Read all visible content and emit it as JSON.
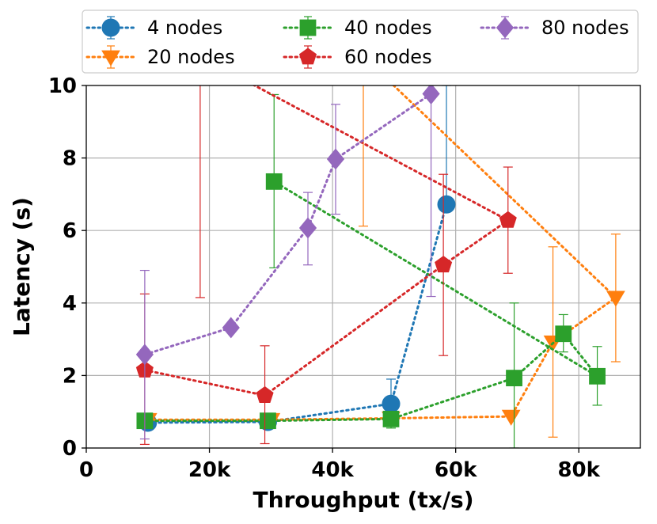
{
  "chart_data": {
    "type": "line",
    "xlabel": "Throughput (tx/s)",
    "ylabel": "Latency (s)",
    "xlim": [
      0,
      90000
    ],
    "ylim": [
      0,
      10
    ],
    "x_ticks": [
      0,
      20000,
      40000,
      60000,
      80000
    ],
    "x_tick_labels": [
      "0",
      "20k",
      "40k",
      "60k",
      "80k"
    ],
    "y_ticks": [
      0,
      2,
      4,
      6,
      8,
      10
    ],
    "y_tick_labels": [
      "0",
      "2",
      "4",
      "6",
      "8",
      "10"
    ],
    "grid": true,
    "legend_position": "top",
    "line_style": "dotted",
    "series": [
      {
        "name": "4 nodes",
        "color": "#1f77b4",
        "marker": "circle",
        "x": [
          10000,
          29500,
          49500,
          58500
        ],
        "y": [
          0.7,
          0.72,
          1.22,
          6.72
        ],
        "err_low": [
          0.7,
          0.72,
          0.65,
          6.72
        ],
        "err_high": [
          0.7,
          0.72,
          1.9,
          10.0
        ]
      },
      {
        "name": "20 nodes",
        "color": "#ff7f0e",
        "marker": "triangle-down",
        "x": [
          10000,
          30000,
          49500,
          69000,
          75800,
          86000,
          45000
        ],
        "y": [
          0.78,
          0.78,
          0.82,
          0.87,
          2.92,
          4.15,
          10.8
        ],
        "err_low": [
          0.78,
          0.78,
          0.82,
          0.87,
          0.3,
          2.38,
          6.12
        ],
        "err_high": [
          0.78,
          0.78,
          0.82,
          0.87,
          5.55,
          5.9,
          10.8
        ]
      },
      {
        "name": "40 nodes",
        "color": "#2ca02c",
        "marker": "square",
        "x": [
          9500,
          29500,
          49500,
          69500,
          77500,
          83000,
          30500
        ],
        "y": [
          0.75,
          0.75,
          0.8,
          1.93,
          3.15,
          1.98,
          7.35
        ],
        "err_low": [
          0.75,
          0.75,
          0.55,
          0.0,
          2.65,
          1.18,
          4.97
        ],
        "err_high": [
          0.75,
          0.75,
          0.8,
          4.0,
          3.68,
          2.8,
          9.75
        ]
      },
      {
        "name": "60 nodes",
        "color": "#d62728",
        "marker": "pentagon",
        "x": [
          9500,
          29000,
          58000,
          68500,
          18500
        ],
        "y": [
          2.15,
          1.45,
          5.05,
          6.28,
          10.8
        ],
        "err_low": [
          0.1,
          0.12,
          2.55,
          4.82,
          4.15
        ],
        "err_high": [
          4.25,
          2.82,
          7.55,
          7.75,
          10.8
        ]
      },
      {
        "name": "80 nodes",
        "color": "#9467bd",
        "marker": "diamond",
        "x": [
          9500,
          23500,
          36000,
          40500,
          56000
        ],
        "y": [
          2.58,
          3.32,
          6.07,
          7.97,
          9.77
        ],
        "err_low": [
          0.25,
          3.32,
          5.05,
          6.45,
          4.18
        ],
        "err_high": [
          4.9,
          3.32,
          7.05,
          9.48,
          9.77
        ]
      }
    ],
    "legend_layout": [
      {
        "series": 0
      },
      {
        "series": 2
      },
      {
        "series": 4
      },
      {
        "series": 1
      },
      {
        "series": 3
      }
    ]
  }
}
